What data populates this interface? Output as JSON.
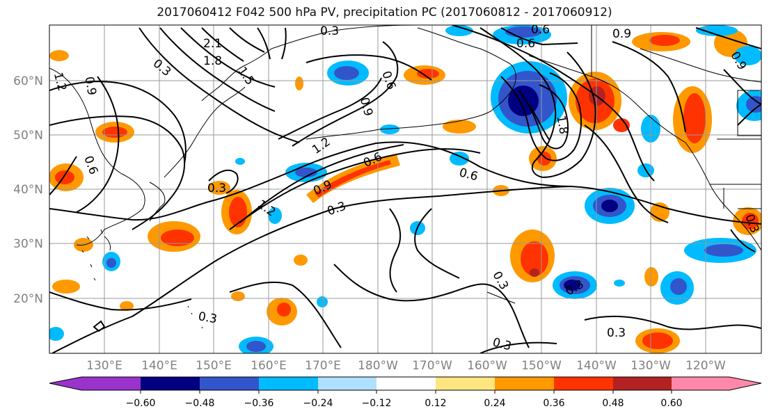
{
  "title": "2017060412 F042 500 hPa PV, precipitation PC (2017060812 - 2017060912)",
  "lat_labels": [
    "60°N",
    "50°N",
    "40°N",
    "30°N",
    "20°N"
  ],
  "lon_labels": [
    "130°E",
    "140°E",
    "150°E",
    "160°E",
    "170°E",
    "180°W",
    "170°W",
    "160°W",
    "150°W",
    "140°W",
    "130°W",
    "120°W"
  ],
  "colorbar": {
    "tick_labels": [
      "−0.60",
      "−0.48",
      "−0.36",
      "−0.24",
      "−0.12",
      "0.12",
      "0.24",
      "0.36",
      "0.48",
      "0.60"
    ],
    "colors": [
      "#9933cc",
      "#000080",
      "#3355cc",
      "#00bbff",
      "#b0e0ff",
      "#ffffff",
      "#ffe680",
      "#ff9900",
      "#ff3300",
      "#b22222",
      "#ff88aa"
    ]
  },
  "contour_labels": [
    "0.3",
    "0.6",
    "0.9",
    "1.2",
    "1.5",
    "1.8",
    "2.1"
  ],
  "contour_label_positions": [
    {
      "text": "2.1"
    },
    {
      "text": "1.8"
    },
    {
      "text": "1.5"
    },
    {
      "text": "0.3"
    },
    {
      "text": "1.2"
    },
    {
      "text": "0.9"
    },
    {
      "text": "0.6"
    },
    {
      "text": "0.3"
    },
    {
      "text": "0.9"
    },
    {
      "text": "1.2"
    },
    {
      "text": "0.9"
    },
    {
      "text": "1.2"
    },
    {
      "text": "0.3"
    },
    {
      "text": "0.6"
    },
    {
      "text": "0.3"
    },
    {
      "text": "0.6"
    },
    {
      "text": "0.6"
    },
    {
      "text": "0.9"
    },
    {
      "text": "1.8"
    },
    {
      "text": "0.3"
    },
    {
      "text": "0.3"
    },
    {
      "text": "0.3"
    },
    {
      "text": "0.3"
    },
    {
      "text": "0.3"
    },
    {
      "text": "0.6"
    },
    {
      "text": "0.9"
    },
    {
      "text": "0.3"
    },
    {
      "text": "0.6"
    }
  ]
}
